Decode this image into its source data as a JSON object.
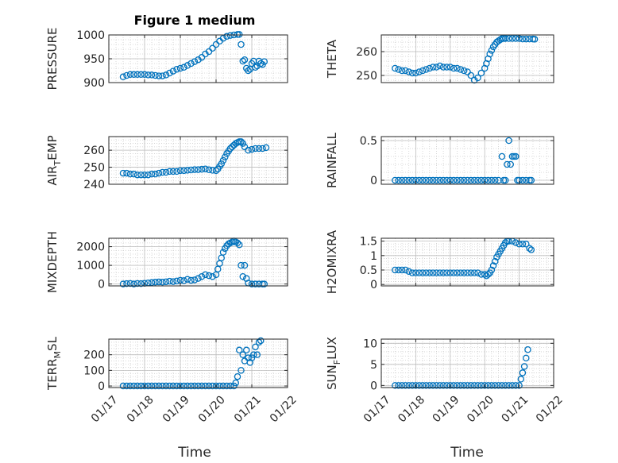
{
  "title": "Figure 1 medium",
  "xlabel": "Time",
  "xticks": [
    "01/17",
    "01/18",
    "01/19",
    "01/20",
    "01/21",
    "01/22"
  ],
  "marker_color": "#0072bd",
  "chart_data": [
    {
      "type": "scatter",
      "ylabel": "PRESSURE",
      "xlim": [
        17,
        22
      ],
      "ylim": [
        900,
        1000
      ],
      "yticks": [
        900,
        950,
        1000
      ],
      "x": [
        17.4,
        17.5,
        17.6,
        17.7,
        17.8,
        17.9,
        18.0,
        18.1,
        18.2,
        18.3,
        18.4,
        18.5,
        18.6,
        18.7,
        18.8,
        18.9,
        19.0,
        19.1,
        19.2,
        19.3,
        19.4,
        19.5,
        19.6,
        19.7,
        19.8,
        19.9,
        20.0,
        20.1,
        20.2,
        20.3,
        20.4,
        20.5,
        20.6,
        20.65,
        20.7,
        20.75,
        20.8,
        20.85,
        20.9,
        20.95,
        21.0,
        21.05,
        21.1,
        21.15,
        21.2,
        21.25,
        21.3,
        21.35
      ],
      "y": [
        912,
        915,
        917,
        917,
        917,
        917,
        917,
        916,
        916,
        915,
        914,
        914,
        916,
        920,
        924,
        928,
        930,
        932,
        936,
        940,
        944,
        948,
        953,
        960,
        965,
        972,
        980,
        987,
        993,
        997,
        999,
        1000,
        1001,
        1001,
        980,
        945,
        948,
        930,
        925,
        928,
        940,
        945,
        932,
        935,
        945,
        940,
        938,
        944
      ]
    },
    {
      "type": "scatter",
      "ylabel": "THETA",
      "xlim": [
        17,
        22
      ],
      "ylim": [
        247,
        267
      ],
      "yticks": [
        250,
        260
      ],
      "x": [
        17.4,
        17.5,
        17.6,
        17.7,
        17.8,
        17.9,
        18.0,
        18.1,
        18.2,
        18.3,
        18.4,
        18.5,
        18.6,
        18.7,
        18.8,
        18.9,
        19.0,
        19.1,
        19.2,
        19.3,
        19.4,
        19.5,
        19.6,
        19.7,
        19.8,
        19.9,
        20.0,
        20.05,
        20.1,
        20.15,
        20.2,
        20.25,
        20.3,
        20.35,
        20.4,
        20.45,
        20.5,
        20.55,
        20.6,
        20.7,
        20.8,
        20.9,
        21.0,
        21.1,
        21.2,
        21.3,
        21.4,
        21.45
      ],
      "y": [
        253,
        252.5,
        252,
        252,
        251.5,
        251,
        251,
        251.5,
        252,
        252.5,
        253,
        253.5,
        253.5,
        254,
        253.5,
        253.5,
        253.5,
        253,
        253,
        252.5,
        252,
        251.5,
        250,
        248,
        249,
        251,
        253,
        255,
        257,
        259,
        260.5,
        262,
        263,
        264,
        264.5,
        265,
        265.5,
        265.5,
        265.5,
        265.5,
        265.5,
        265.5,
        265.5,
        265.3,
        265.3,
        265.3,
        265.3,
        265.2
      ]
    },
    {
      "type": "scatter",
      "ylabel": "AIR_TEMP",
      "xlim": [
        17,
        22
      ],
      "ylim": [
        240,
        268
      ],
      "yticks": [
        240,
        250,
        260
      ],
      "x": [
        17.4,
        17.5,
        17.6,
        17.7,
        17.8,
        17.9,
        18.0,
        18.1,
        18.2,
        18.3,
        18.4,
        18.5,
        18.6,
        18.7,
        18.8,
        18.9,
        19.0,
        19.1,
        19.2,
        19.3,
        19.4,
        19.5,
        19.6,
        19.7,
        19.8,
        19.9,
        20.0,
        20.05,
        20.1,
        20.15,
        20.2,
        20.25,
        20.3,
        20.35,
        20.4,
        20.45,
        20.5,
        20.55,
        20.6,
        20.65,
        20.7,
        20.75,
        20.8,
        20.9,
        21.0,
        21.1,
        21.2,
        21.3,
        21.4
      ],
      "y": [
        246.5,
        246.5,
        246,
        246,
        245.5,
        245.5,
        245.5,
        245.5,
        246,
        246,
        246.5,
        247,
        247,
        247.5,
        247.5,
        247.5,
        248,
        248,
        248.2,
        248.4,
        248.6,
        248.6,
        248.8,
        249,
        248.5,
        248.2,
        248,
        249,
        250.5,
        252,
        254,
        256,
        258,
        259.5,
        261,
        262,
        263,
        264,
        264.5,
        265,
        265,
        264,
        262,
        260,
        260.5,
        261,
        261,
        261,
        261.5
      ]
    },
    {
      "type": "scatter",
      "ylabel": "RAINFALL",
      "xlim": [
        17,
        22
      ],
      "ylim": [
        -0.05,
        0.55
      ],
      "yticks": [
        0,
        0.5
      ],
      "x": [
        17.4,
        17.5,
        17.6,
        17.7,
        17.8,
        17.9,
        18.0,
        18.1,
        18.2,
        18.3,
        18.4,
        18.5,
        18.6,
        18.7,
        18.8,
        18.9,
        19.0,
        19.1,
        19.2,
        19.3,
        19.4,
        19.5,
        19.6,
        19.7,
        19.8,
        19.9,
        20.0,
        20.1,
        20.2,
        20.3,
        20.4,
        20.5,
        20.55,
        20.6,
        20.65,
        20.7,
        20.75,
        20.8,
        20.85,
        20.9,
        20.95,
        21.0,
        21.1,
        21.2,
        21.3,
        21.35
      ],
      "y": [
        0,
        0,
        0,
        0,
        0,
        0,
        0,
        0,
        0,
        0,
        0,
        0,
        0,
        0,
        0,
        0,
        0,
        0,
        0,
        0,
        0,
        0,
        0,
        0,
        0,
        0,
        0,
        0,
        0,
        0,
        0,
        0.3,
        0,
        0,
        0.2,
        0.5,
        0.2,
        0.3,
        0.3,
        0.3,
        0,
        0,
        0,
        0,
        0,
        0
      ]
    },
    {
      "type": "scatter",
      "ylabel": "MIXDEPTH",
      "xlim": [
        17,
        22
      ],
      "ylim": [
        -100,
        2450
      ],
      "yticks": [
        0,
        1000,
        2000
      ],
      "x": [
        17.4,
        17.5,
        17.6,
        17.7,
        17.8,
        17.9,
        18.0,
        18.1,
        18.2,
        18.3,
        18.4,
        18.5,
        18.6,
        18.7,
        18.8,
        18.9,
        19.0,
        19.1,
        19.2,
        19.3,
        19.4,
        19.5,
        19.6,
        19.7,
        19.8,
        19.9,
        20.0,
        20.05,
        20.1,
        20.15,
        20.2,
        20.25,
        20.3,
        20.35,
        20.4,
        20.45,
        20.5,
        20.55,
        20.6,
        20.65,
        20.7,
        20.75,
        20.8,
        20.85,
        20.9,
        21.0,
        21.1,
        21.2,
        21.3,
        21.35
      ],
      "y": [
        0,
        20,
        30,
        0,
        30,
        20,
        40,
        60,
        80,
        100,
        110,
        100,
        120,
        150,
        130,
        160,
        200,
        180,
        250,
        200,
        220,
        300,
        400,
        500,
        450,
        400,
        500,
        800,
        1100,
        1400,
        1700,
        1900,
        2050,
        2150,
        2200,
        2250,
        2300,
        2250,
        2200,
        2100,
        1000,
        400,
        1000,
        300,
        50,
        0,
        0,
        0,
        0,
        0
      ]
    },
    {
      "type": "scatter",
      "ylabel": "H2OMIXRA",
      "xlim": [
        17,
        22
      ],
      "ylim": [
        -0.05,
        1.6
      ],
      "yticks": [
        0,
        0.5,
        1,
        1.5
      ],
      "x": [
        17.4,
        17.5,
        17.6,
        17.7,
        17.8,
        17.9,
        18.0,
        18.1,
        18.2,
        18.3,
        18.4,
        18.5,
        18.6,
        18.7,
        18.8,
        18.9,
        19.0,
        19.1,
        19.2,
        19.3,
        19.4,
        19.5,
        19.6,
        19.7,
        19.8,
        19.9,
        20.0,
        20.05,
        20.1,
        20.15,
        20.2,
        20.25,
        20.3,
        20.35,
        20.4,
        20.45,
        20.5,
        20.55,
        20.6,
        20.65,
        20.7,
        20.8,
        20.9,
        21.0,
        21.1,
        21.2,
        21.3,
        21.35
      ],
      "y": [
        0.5,
        0.5,
        0.5,
        0.5,
        0.45,
        0.4,
        0.4,
        0.4,
        0.4,
        0.4,
        0.4,
        0.4,
        0.4,
        0.4,
        0.4,
        0.4,
        0.4,
        0.4,
        0.4,
        0.4,
        0.4,
        0.4,
        0.4,
        0.4,
        0.4,
        0.35,
        0.35,
        0.3,
        0.35,
        0.4,
        0.5,
        0.65,
        0.8,
        0.95,
        1.05,
        1.15,
        1.25,
        1.35,
        1.45,
        1.5,
        1.5,
        1.5,
        1.45,
        1.4,
        1.4,
        1.4,
        1.25,
        1.2
      ]
    },
    {
      "type": "scatter",
      "ylabel": "TERR_MSL",
      "xlim": [
        17,
        22
      ],
      "ylim": [
        -10,
        300
      ],
      "yticks": [
        0,
        100,
        200
      ],
      "x": [
        17.4,
        17.5,
        17.6,
        17.7,
        17.8,
        17.9,
        18.0,
        18.1,
        18.2,
        18.3,
        18.4,
        18.5,
        18.6,
        18.7,
        18.8,
        18.9,
        19.0,
        19.1,
        19.2,
        19.3,
        19.4,
        19.5,
        19.6,
        19.7,
        19.8,
        19.9,
        20.0,
        20.1,
        20.2,
        20.3,
        20.4,
        20.5,
        20.55,
        20.6,
        20.65,
        20.7,
        20.75,
        20.8,
        20.85,
        20.9,
        20.95,
        21.0,
        21.05,
        21.1,
        21.15,
        21.2,
        21.25
      ],
      "y": [
        0,
        0,
        0,
        0,
        0,
        0,
        0,
        0,
        0,
        0,
        0,
        0,
        0,
        0,
        0,
        0,
        0,
        0,
        0,
        0,
        0,
        0,
        0,
        0,
        0,
        0,
        0,
        0,
        0,
        0,
        0,
        0,
        20,
        60,
        230,
        100,
        200,
        160,
        230,
        180,
        150,
        180,
        200,
        250,
        200,
        280,
        290
      ]
    },
    {
      "type": "scatter",
      "ylabel": "SUN_FLUX",
      "xlim": [
        17,
        22
      ],
      "ylim": [
        -0.5,
        11
      ],
      "yticks": [
        0,
        5,
        10
      ],
      "x": [
        17.4,
        17.5,
        17.6,
        17.7,
        17.8,
        17.9,
        18.0,
        18.1,
        18.2,
        18.3,
        18.4,
        18.5,
        18.6,
        18.7,
        18.8,
        18.9,
        19.0,
        19.1,
        19.2,
        19.3,
        19.4,
        19.5,
        19.6,
        19.7,
        19.8,
        19.9,
        20.0,
        20.1,
        20.2,
        20.3,
        20.4,
        20.5,
        20.6,
        20.7,
        20.8,
        20.9,
        21.0,
        21.05,
        21.1,
        21.15,
        21.2,
        21.25
      ],
      "y": [
        0,
        0,
        0,
        0,
        0,
        0,
        0,
        0,
        0,
        0,
        0,
        0,
        0,
        0,
        0,
        0,
        0,
        0,
        0,
        0,
        0,
        0,
        0,
        0,
        0,
        0,
        0,
        0,
        0,
        0,
        0,
        0,
        0,
        0,
        0,
        0,
        0,
        1.5,
        3,
        4.5,
        6.5,
        8.5
      ]
    }
  ]
}
